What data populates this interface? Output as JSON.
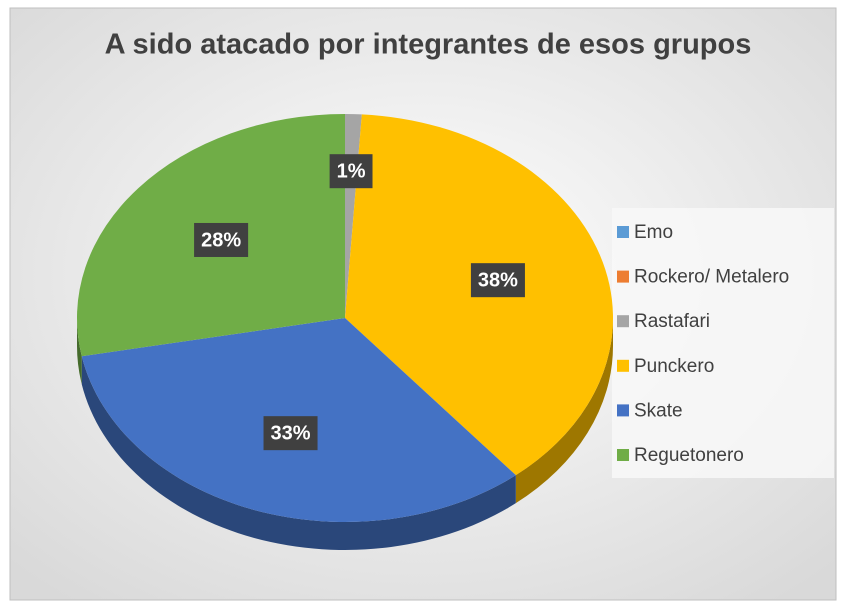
{
  "chart_data": {
    "type": "pie",
    "title": "A sido atacado por integrantes de esos grupos",
    "categories": [
      "Emo",
      "Rockero/ Metalero",
      "Rastafari",
      "Punckero",
      "Skate",
      "Reguetonero"
    ],
    "values": [
      0,
      0,
      1,
      38,
      33,
      28
    ],
    "value_labels": [
      null,
      null,
      "1%",
      "38%",
      "33%",
      "28%"
    ],
    "colors": [
      "#5b9bd5",
      "#ed7d31",
      "#a5a5a5",
      "#ffc000",
      "#4472c4",
      "#70ad47"
    ],
    "legend": "right"
  }
}
